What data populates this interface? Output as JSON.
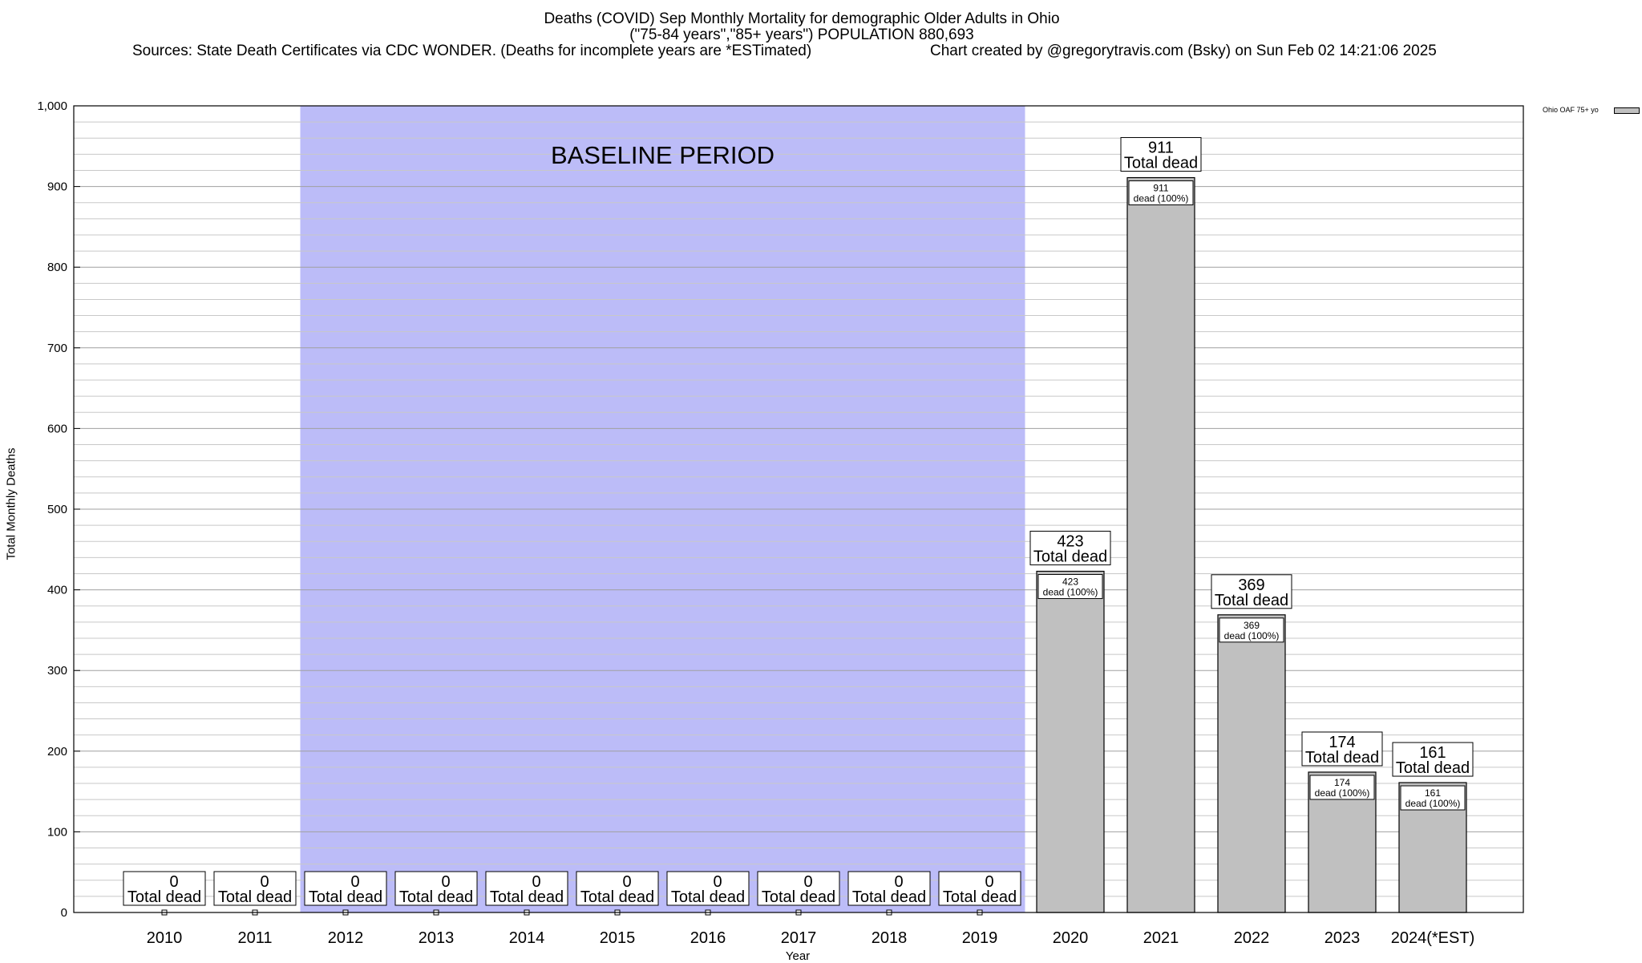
{
  "chart_data": {
    "type": "bar",
    "title": "Deaths (COVID) Sep Monthly Mortality for demographic Older Adults in Ohio",
    "subtitle": "(\"75-84 years\",\"85+ years\") POPULATION 880,693",
    "sources": "Sources: State Death Certificates via CDC WONDER. (Deaths for incomplete years are *ESTimated)",
    "credit": "Chart created by @gregorytravis.com (Bsky) on Sun Feb 02 14:21:06 2025",
    "xlabel": "Year",
    "ylabel": "Total Monthly Deaths",
    "ylim": [
      0,
      1000
    ],
    "yticks": [
      "0",
      "100",
      "200",
      "300",
      "400",
      "500",
      "600",
      "700",
      "800",
      "900",
      "1,000"
    ],
    "categories": [
      "2010",
      "2011",
      "2012",
      "2013",
      "2014",
      "2015",
      "2016",
      "2017",
      "2018",
      "2019",
      "2020",
      "2021",
      "2022",
      "2023",
      "2024(*EST)"
    ],
    "series": [
      {
        "name": "Ohio OAF 75+ yo",
        "values": [
          0,
          0,
          0,
          0,
          0,
          0,
          0,
          0,
          0,
          0,
          423,
          911,
          369,
          174,
          161
        ]
      }
    ],
    "total_label": "Total dead",
    "inner_label": "dead (100%)",
    "baseline": {
      "label": "BASELINE PERIOD",
      "from": "2012",
      "to": "2019",
      "color": "#bcbcf8"
    },
    "bar_color": "#c0c0c0",
    "grid": true,
    "legend_position": "top-right"
  }
}
